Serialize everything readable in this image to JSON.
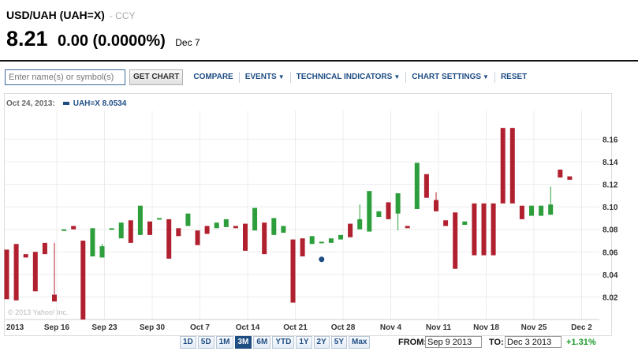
{
  "quote": {
    "title": "USD/UAH (UAH=X)",
    "type": "- CCY",
    "price": "8.21",
    "change": "0.00 (0.0000%)",
    "date": "Dec 7"
  },
  "toolbar": {
    "search_placeholder": "Enter name(s) or symbol(s)",
    "get_chart": "GET CHART",
    "compare": "COMPARE",
    "events": "EVENTS",
    "technical": "TECHNICAL INDICATORS",
    "settings": "CHART SETTINGS",
    "reset": "RESET"
  },
  "chart_header": {
    "date": "Oct 24, 2013:",
    "legend": "UAH=X 8.0534"
  },
  "ranges": [
    "1D",
    "5D",
    "1M",
    "3M",
    "6M",
    "YTD",
    "1Y",
    "2Y",
    "5Y",
    "Max"
  ],
  "active_range": "3M",
  "footer": {
    "from_label": "FROM:",
    "from_value": "Sep 9 2013",
    "to_label": "TO:",
    "to_value": "Dec 3 2013",
    "change_pct": "+1.31%"
  },
  "colors": {
    "up": "#2c9e3b",
    "down": "#b0202e",
    "accent": "#1e4d84"
  },
  "chart_data": {
    "type": "candlestick",
    "watermark": "© 2013 Yahoo! Inc.",
    "ylim": [
      8.0,
      8.175
    ],
    "yticks": [
      8.02,
      8.04,
      8.06,
      8.08,
      8.1,
      8.12,
      8.14,
      8.16
    ],
    "xticks": [
      {
        "label": "2013",
        "day": 0
      },
      {
        "label": "Sep 16",
        "day": 5
      },
      {
        "label": "Sep 23",
        "day": 10
      },
      {
        "label": "Sep 30",
        "day": 15
      },
      {
        "label": "Oct 7",
        "day": 20
      },
      {
        "label": "Oct 14",
        "day": 25
      },
      {
        "label": "Oct 21",
        "day": 30
      },
      {
        "label": "Oct 28",
        "day": 35
      },
      {
        "label": "Nov 4",
        "day": 40
      },
      {
        "label": "Nov 11",
        "day": 45
      },
      {
        "label": "Nov 18",
        "day": 50
      },
      {
        "label": "Nov 25",
        "day": 55
      },
      {
        "label": "Dec 2",
        "day": 60
      }
    ],
    "marker": {
      "day": 33,
      "value": 8.0534
    },
    "candles": [
      {
        "day": 0,
        "open": 8.062,
        "close": 8.018
      },
      {
        "day": 1,
        "open": 8.067,
        "close": 8.017
      },
      {
        "day": 2,
        "open": 8.058,
        "close": 8.055
      },
      {
        "day": 3,
        "open": 8.06,
        "close": 8.025
      },
      {
        "day": 4,
        "open": 8.068,
        "close": 8.058
      },
      {
        "day": 5,
        "open": 8.022,
        "close": 8.016,
        "high": 8.068
      },
      {
        "day": 6,
        "open": 8.08,
        "close": 8.08
      },
      {
        "day": 7,
        "open": 8.083,
        "close": 8.08
      },
      {
        "day": 8,
        "open": 8.07,
        "close": 8.0
      },
      {
        "day": 9,
        "open": 8.056,
        "close": 8.081
      },
      {
        "day": 10,
        "open": 8.055,
        "close": 8.065,
        "high": 8.067
      },
      {
        "day": 11,
        "open": 8.081,
        "close": 8.081
      },
      {
        "day": 12,
        "open": 8.072,
        "close": 8.086
      },
      {
        "day": 13,
        "open": 8.088,
        "close": 8.068
      },
      {
        "day": 14,
        "open": 8.075,
        "close": 8.101
      },
      {
        "day": 15,
        "open": 8.087,
        "close": 8.075
      },
      {
        "day": 16,
        "open": 8.09,
        "close": 8.09
      },
      {
        "day": 17,
        "open": 8.089,
        "close": 8.054
      },
      {
        "day": 18,
        "open": 8.081,
        "close": 8.074
      },
      {
        "day": 19,
        "open": 8.083,
        "close": 8.094
      },
      {
        "day": 20,
        "open": 8.079,
        "close": 8.066
      },
      {
        "day": 21,
        "open": 8.083,
        "close": 8.076
      },
      {
        "day": 22,
        "open": 8.081,
        "close": 8.086
      },
      {
        "day": 23,
        "open": 8.082,
        "close": 8.089
      },
      {
        "day": 24,
        "open": 8.083,
        "close": 8.081
      },
      {
        "day": 25,
        "open": 8.085,
        "close": 8.061
      },
      {
        "day": 26,
        "open": 8.079,
        "close": 8.099
      },
      {
        "day": 27,
        "open": 8.086,
        "close": 8.058
      },
      {
        "day": 28,
        "open": 8.075,
        "close": 8.09
      },
      {
        "day": 29,
        "open": 8.077,
        "close": 8.083
      },
      {
        "day": 30,
        "open": 8.071,
        "close": 8.015
      },
      {
        "day": 31,
        "open": 8.072,
        "close": 8.056
      },
      {
        "day": 32,
        "open": 8.067,
        "close": 8.074
      },
      {
        "day": 33,
        "open": 8.069,
        "close": 8.069
      },
      {
        "day": 34,
        "open": 8.068,
        "close": 8.072
      },
      {
        "day": 35,
        "open": 8.071,
        "close": 8.075
      },
      {
        "day": 36,
        "open": 8.085,
        "close": 8.073
      },
      {
        "day": 37,
        "open": 8.08,
        "close": 8.089,
        "high": 8.102
      },
      {
        "day": 38,
        "open": 8.078,
        "close": 8.114
      },
      {
        "day": 39,
        "open": 8.091,
        "close": 8.096
      },
      {
        "day": 40,
        "open": 8.104,
        "close": 8.089
      },
      {
        "day": 41,
        "open": 8.094,
        "close": 8.112,
        "low": 8.079
      },
      {
        "day": 42,
        "open": 8.083,
        "close": 8.081
      },
      {
        "day": 43,
        "open": 8.098,
        "close": 8.139
      },
      {
        "day": 44,
        "open": 8.129,
        "close": 8.108
      },
      {
        "day": 45,
        "open": 8.106,
        "close": 8.096,
        "high": 8.113
      },
      {
        "day": 46,
        "open": 8.088,
        "close": 8.083
      },
      {
        "day": 47,
        "open": 8.095,
        "close": 8.045
      },
      {
        "day": 48,
        "open": 8.084,
        "close": 8.087
      },
      {
        "day": 49,
        "open": 8.103,
        "close": 8.057
      },
      {
        "day": 50,
        "open": 8.103,
        "close": 8.057
      },
      {
        "day": 51,
        "open": 8.103,
        "close": 8.057
      },
      {
        "day": 52,
        "open": 8.17,
        "close": 8.103
      },
      {
        "day": 53,
        "open": 8.17,
        "close": 8.103
      },
      {
        "day": 54,
        "open": 8.101,
        "close": 8.089
      },
      {
        "day": 55,
        "open": 8.092,
        "close": 8.101
      },
      {
        "day": 56,
        "open": 8.092,
        "close": 8.101
      },
      {
        "day": 57,
        "open": 8.093,
        "close": 8.102,
        "high": 8.118
      },
      {
        "day": 58,
        "open": 8.133,
        "close": 8.126
      },
      {
        "day": 59,
        "open": 8.127,
        "close": 8.124
      }
    ]
  }
}
